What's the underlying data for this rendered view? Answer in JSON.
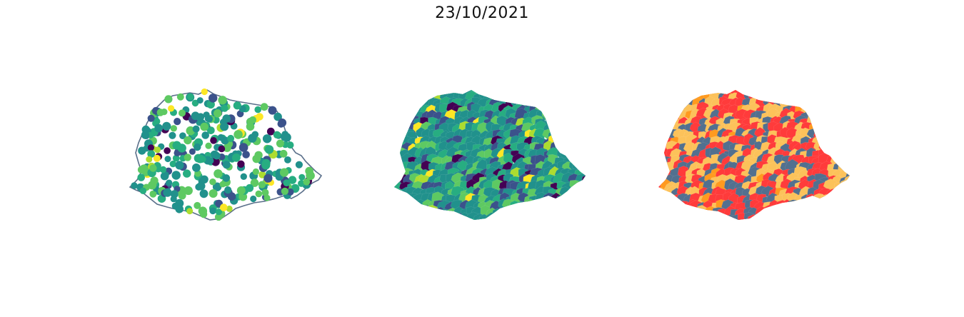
{
  "figure": {
    "title": "23/10/2021"
  },
  "panels": [
    {
      "id": "points",
      "kind": "point-map",
      "boundary_color": "#5a6f8a"
    },
    {
      "id": "choropleth",
      "kind": "continuous-choropleth"
    },
    {
      "id": "categories",
      "kind": "categorical-choropleth"
    }
  ],
  "colors": {
    "viridis": [
      "#440154",
      "#3b528b",
      "#21918c",
      "#27ad81",
      "#5ec962",
      "#addc30",
      "#fde725"
    ],
    "categories": [
      "#52708f",
      "#ff3b3b",
      "#fcc25a",
      "#ff9a1f"
    ]
  }
}
